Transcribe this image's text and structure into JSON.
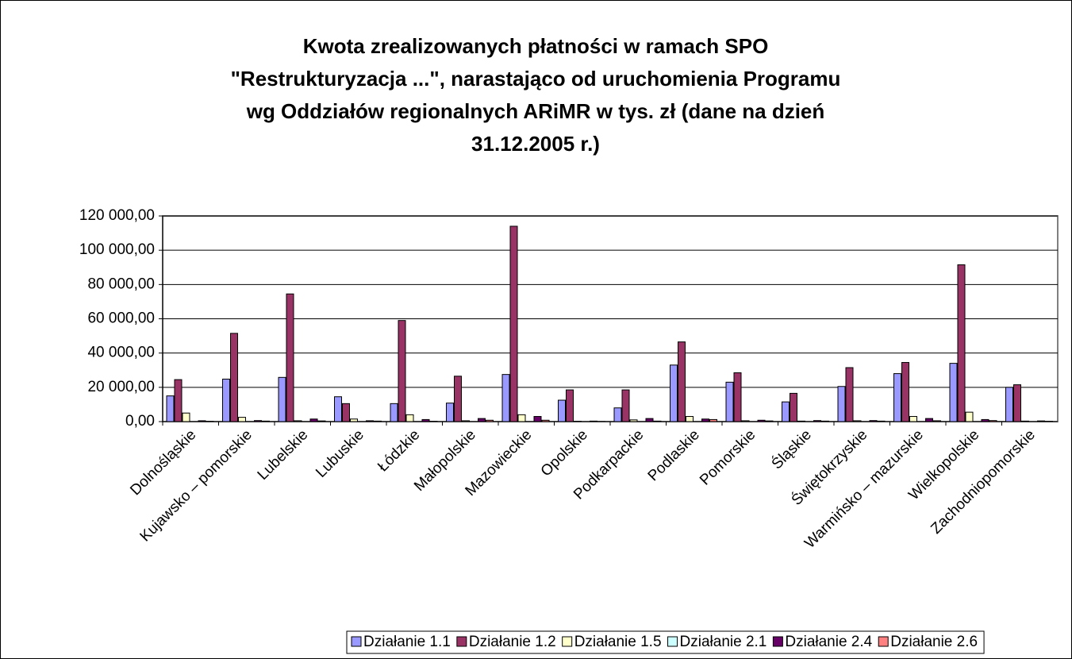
{
  "chart_data": {
    "type": "bar",
    "title_lines": [
      "Kwota zrealizowanych płatności w ramach SPO",
      "\"Restrukturyzacja ...\", narastająco od uruchomienia Programu",
      "wg Oddziałów regionalnych ARiMR w tys. zł (dane na dzień",
      "31.12.2005 r.)"
    ],
    "categories": [
      "Dolnośląskie",
      "Kujawsko – pomorskie",
      "Lubelskie",
      "Lubuskie",
      "Łódzkie",
      "Małopolskie",
      "Mazowieckie",
      "Opolskie",
      "Podkarpackie",
      "Podlaskie",
      "Pomorskie",
      "Śląskie",
      "Świętokrzyskie",
      "Warmińsko – mazurskie",
      "Wielkopolskie",
      "Zachodniopomorskie"
    ],
    "series": [
      {
        "name": "Działanie 1.1",
        "color": "#9999ff",
        "values": [
          15000,
          24800,
          25800,
          14500,
          10500,
          10800,
          27500,
          12500,
          8000,
          33000,
          23000,
          11500,
          20500,
          28000,
          34000,
          20000
        ]
      },
      {
        "name": "Działanie 1.2",
        "color": "#993366",
        "values": [
          24500,
          51500,
          74500,
          10500,
          59000,
          26500,
          114000,
          18500,
          18500,
          46500,
          28500,
          16500,
          31500,
          34500,
          91500,
          21500
        ]
      },
      {
        "name": "Działanie 1.5",
        "color": "#ffffcc",
        "values": [
          5000,
          2500,
          500,
          1500,
          4000,
          500,
          4000,
          200,
          1000,
          3000,
          500,
          300,
          500,
          3000,
          5500,
          300
        ]
      },
      {
        "name": "Działanie 2.1",
        "color": "#ccffff",
        "values": [
          0,
          0,
          0,
          0,
          0,
          0,
          0,
          0,
          0,
          0,
          0,
          0,
          0,
          0,
          0,
          0
        ]
      },
      {
        "name": "Działanie 2.4",
        "color": "#660066",
        "values": [
          500,
          600,
          1500,
          500,
          1200,
          1800,
          3000,
          300,
          1800,
          1500,
          800,
          600,
          600,
          1800,
          1200,
          400
        ]
      },
      {
        "name": "Działanie 2.6",
        "color": "#ff8080",
        "values": [
          200,
          300,
          400,
          300,
          200,
          800,
          800,
          100,
          300,
          1200,
          400,
          300,
          300,
          500,
          600,
          200
        ]
      }
    ],
    "ylim": [
      0,
      120000
    ],
    "yticks": [
      {
        "value": 0,
        "label": "0,00"
      },
      {
        "value": 20000,
        "label": "20 000,00"
      },
      {
        "value": 40000,
        "label": "40 000,00"
      },
      {
        "value": 60000,
        "label": "60 000,00"
      },
      {
        "value": 80000,
        "label": "80 000,00"
      },
      {
        "value": 100000,
        "label": "100 000,00"
      },
      {
        "value": 120000,
        "label": "120 000,00"
      }
    ],
    "grid": true,
    "legend": "bottom"
  }
}
